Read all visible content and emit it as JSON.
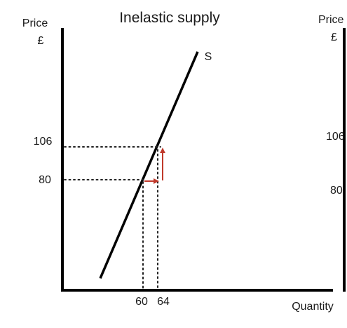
{
  "left_panel": {
    "title": "Inelastic supply",
    "y_axis_label_line1": "Price",
    "y_axis_label_line2": "£",
    "x_axis_label": "Quantity",
    "curve_label": "S",
    "price_ticks": [
      "106",
      "80"
    ],
    "quantity_ticks": [
      "60",
      "64"
    ]
  },
  "right_panel_partial": {
    "y_axis_label_line1": "Price",
    "y_axis_label_line2": "£",
    "price_ticks": [
      "106",
      "80"
    ]
  },
  "colors": {
    "axis": "#000000",
    "curve": "#000000",
    "guide": "#222222",
    "arrow": "#c0392b",
    "text": "#1a1a1a"
  }
}
